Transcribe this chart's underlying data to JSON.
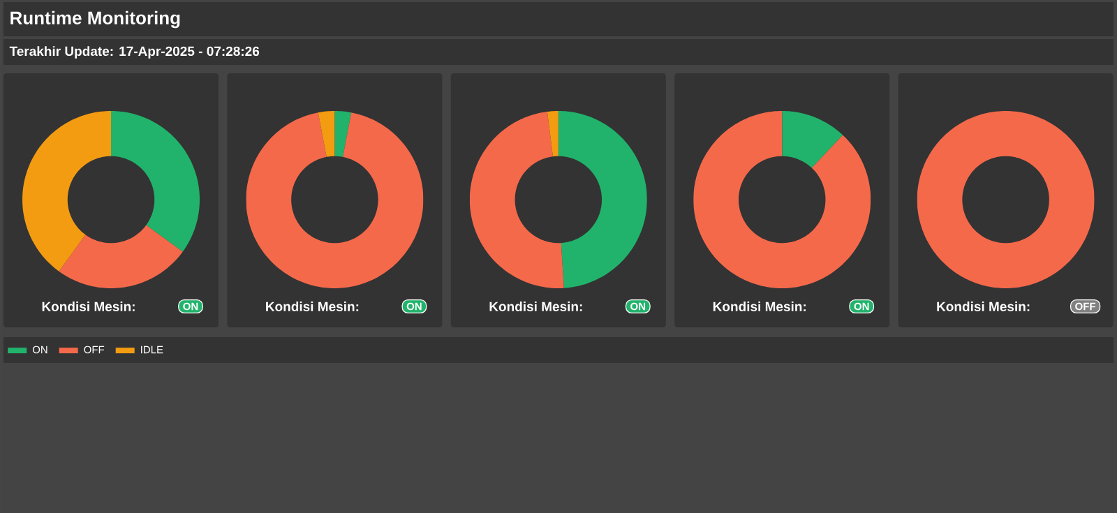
{
  "chart_data": [
    {
      "type": "donut",
      "title": "Runtime Monitoring",
      "subtitle": "Terakhir Update: 17-Apr-2025 - 07:28:26",
      "legend": "bottom",
      "categories": [
        "ON",
        "OFF",
        "IDLE"
      ],
      "values": [
        35,
        25,
        40
      ],
      "colors": [
        "#21b36b",
        "#f5694b",
        "#f39c12"
      ],
      "annotations": [
        "Kondisi Mesin:",
        "ON"
      ]
    },
    {
      "type": "donut",
      "categories": [
        null,
        null,
        null
      ],
      "values": [
        3,
        94,
        3
      ],
      "colors": [
        "#21b36b",
        "#f5694b",
        "#f39c12"
      ],
      "annotations": [
        "Kondisi Mesin:",
        "ON"
      ]
    },
    {
      "type": "donut",
      "categories": [
        null,
        null,
        null
      ],
      "values": [
        49,
        49,
        2
      ],
      "colors": [
        "#21b36b",
        "#f5694b",
        "#f39c12"
      ],
      "annotations": [
        "Kondisi Mesin:",
        "ON"
      ]
    },
    {
      "type": "donut",
      "categories": [
        null,
        null
      ],
      "values": [
        12,
        88
      ],
      "colors": [
        "#21b36b",
        "#f5694b"
      ],
      "annotations": [
        "Kondisi Mesin:",
        "ON"
      ]
    },
    {
      "type": "donut",
      "categories": [
        null
      ],
      "values": [
        100
      ],
      "colors": [
        "#f5694b"
      ],
      "annotations": [
        "Kondisi Mesin:",
        "OFF"
      ]
    }
  ]
}
